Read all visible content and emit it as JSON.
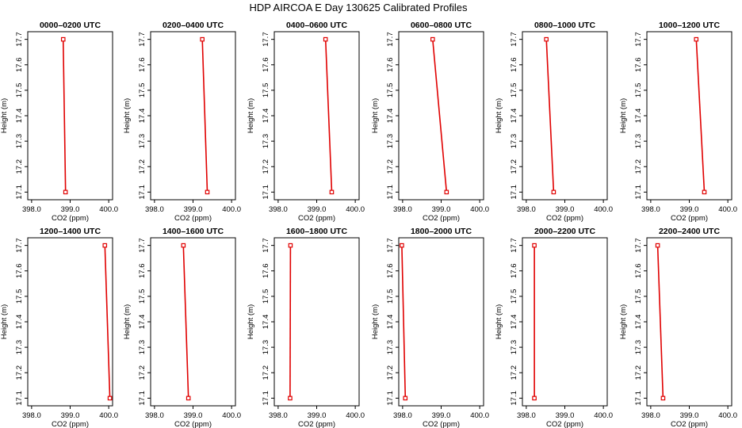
{
  "figure_title": "HDP AIRCOA E  Day 130625  Calibrated Profiles",
  "colors": {
    "line": "#e00000",
    "marker": "#e00000",
    "frame": "#000000"
  },
  "chart_data": [
    {
      "type": "line",
      "title": "0000–0200 UTC",
      "xlabel": "CO2 (ppm)",
      "ylabel": "Height (m)",
      "xlim": [
        397.9,
        400.1
      ],
      "ylim": [
        17.07,
        17.73
      ],
      "xticks": [
        "398.0",
        "399.0",
        "400.0"
      ],
      "yticks": [
        "17.1",
        "17.2",
        "17.3",
        "17.4",
        "17.5",
        "17.6",
        "17.7"
      ],
      "grid": false,
      "series": [
        {
          "x": [
            398.82,
            398.88
          ],
          "y": [
            17.7,
            17.1
          ]
        }
      ]
    },
    {
      "type": "line",
      "title": "0200–0400 UTC",
      "xlabel": "CO2 (ppm)",
      "ylabel": "Height (m)",
      "xlim": [
        397.9,
        400.1
      ],
      "ylim": [
        17.07,
        17.73
      ],
      "xticks": [
        "398.0",
        "399.0",
        "400.0"
      ],
      "yticks": [
        "17.1",
        "17.2",
        "17.3",
        "17.4",
        "17.5",
        "17.6",
        "17.7"
      ],
      "grid": false,
      "series": [
        {
          "x": [
            399.24,
            399.37
          ],
          "y": [
            17.7,
            17.1
          ]
        }
      ]
    },
    {
      "type": "line",
      "title": "0400–0600 UTC",
      "xlabel": "CO2 (ppm)",
      "ylabel": "Height (m)",
      "xlim": [
        397.9,
        400.1
      ],
      "ylim": [
        17.07,
        17.73
      ],
      "xticks": [
        "398.0",
        "399.0",
        "400.0"
      ],
      "yticks": [
        "17.1",
        "17.2",
        "17.3",
        "17.4",
        "17.5",
        "17.6",
        "17.7"
      ],
      "grid": false,
      "series": [
        {
          "x": [
            399.23,
            399.39
          ],
          "y": [
            17.7,
            17.1
          ]
        }
      ]
    },
    {
      "type": "line",
      "title": "0600–0800 UTC",
      "xlabel": "CO2 (ppm)",
      "ylabel": "Height (m)",
      "xlim": [
        397.9,
        400.1
      ],
      "ylim": [
        17.07,
        17.73
      ],
      "xticks": [
        "398.0",
        "399.0",
        "400.0"
      ],
      "yticks": [
        "17.1",
        "17.2",
        "17.3",
        "17.4",
        "17.5",
        "17.6",
        "17.7"
      ],
      "grid": false,
      "series": [
        {
          "x": [
            398.78,
            399.14
          ],
          "y": [
            17.7,
            17.1
          ]
        }
      ]
    },
    {
      "type": "line",
      "title": "0800–1000 UTC",
      "xlabel": "CO2 (ppm)",
      "ylabel": "Height (m)",
      "xlim": [
        397.9,
        400.1
      ],
      "ylim": [
        17.07,
        17.73
      ],
      "xticks": [
        "398.0",
        "399.0",
        "400.0"
      ],
      "yticks": [
        "17.1",
        "17.2",
        "17.3",
        "17.4",
        "17.5",
        "17.6",
        "17.7"
      ],
      "grid": false,
      "series": [
        {
          "x": [
            398.52,
            398.71
          ],
          "y": [
            17.7,
            17.1
          ]
        }
      ]
    },
    {
      "type": "line",
      "title": "1000–1200 UTC",
      "xlabel": "CO2 (ppm)",
      "ylabel": "Height (m)",
      "xlim": [
        397.9,
        400.1
      ],
      "ylim": [
        17.07,
        17.73
      ],
      "xticks": [
        "398.0",
        "399.0",
        "400.0"
      ],
      "yticks": [
        "17.1",
        "17.2",
        "17.3",
        "17.4",
        "17.5",
        "17.6",
        "17.7"
      ],
      "grid": false,
      "series": [
        {
          "x": [
            399.18,
            399.39
          ],
          "y": [
            17.7,
            17.1
          ]
        }
      ]
    },
    {
      "type": "line",
      "title": "1200–1400 UTC",
      "xlabel": "CO2 (ppm)",
      "ylabel": "Height (m)",
      "xlim": [
        397.9,
        400.1
      ],
      "ylim": [
        17.07,
        17.73
      ],
      "xticks": [
        "398.0",
        "399.0",
        "400.0"
      ],
      "yticks": [
        "17.1",
        "17.2",
        "17.3",
        "17.4",
        "17.5",
        "17.6",
        "17.7"
      ],
      "grid": false,
      "series": [
        {
          "x": [
            399.9,
            400.03
          ],
          "y": [
            17.7,
            17.1
          ]
        }
      ]
    },
    {
      "type": "line",
      "title": "1400–1600 UTC",
      "xlabel": "CO2 (ppm)",
      "ylabel": "Height (m)",
      "xlim": [
        397.9,
        400.1
      ],
      "ylim": [
        17.07,
        17.73
      ],
      "xticks": [
        "398.0",
        "399.0",
        "400.0"
      ],
      "yticks": [
        "17.1",
        "17.2",
        "17.3",
        "17.4",
        "17.5",
        "17.6",
        "17.7"
      ],
      "grid": false,
      "series": [
        {
          "x": [
            398.75,
            398.88
          ],
          "y": [
            17.7,
            17.1
          ]
        }
      ]
    },
    {
      "type": "line",
      "title": "1600–1800 UTC",
      "xlabel": "CO2 (ppm)",
      "ylabel": "Height (m)",
      "xlim": [
        397.9,
        400.1
      ],
      "ylim": [
        17.07,
        17.73
      ],
      "xticks": [
        "398.0",
        "399.0",
        "400.0"
      ],
      "yticks": [
        "17.1",
        "17.2",
        "17.3",
        "17.4",
        "17.5",
        "17.6",
        "17.7"
      ],
      "grid": false,
      "series": [
        {
          "x": [
            398.32,
            398.31
          ],
          "y": [
            17.7,
            17.1
          ]
        }
      ]
    },
    {
      "type": "line",
      "title": "1800–2000 UTC",
      "xlabel": "CO2 (ppm)",
      "ylabel": "Height (m)",
      "xlim": [
        397.9,
        400.1
      ],
      "ylim": [
        17.07,
        17.73
      ],
      "xticks": [
        "398.0",
        "399.0",
        "400.0"
      ],
      "yticks": [
        "17.1",
        "17.2",
        "17.3",
        "17.4",
        "17.5",
        "17.6",
        "17.7"
      ],
      "grid": false,
      "series": [
        {
          "x": [
            397.98,
            398.07
          ],
          "y": [
            17.7,
            17.1
          ]
        }
      ]
    },
    {
      "type": "line",
      "title": "2000–2200 UTC",
      "xlabel": "CO2 (ppm)",
      "ylabel": "Height (m)",
      "xlim": [
        397.9,
        400.1
      ],
      "ylim": [
        17.07,
        17.73
      ],
      "xticks": [
        "398.0",
        "399.0",
        "400.0"
      ],
      "yticks": [
        "17.1",
        "17.2",
        "17.3",
        "17.4",
        "17.5",
        "17.6",
        "17.7"
      ],
      "grid": false,
      "series": [
        {
          "x": [
            398.21,
            398.21
          ],
          "y": [
            17.7,
            17.1
          ]
        }
      ]
    },
    {
      "type": "line",
      "title": "2200–2400 UTC",
      "xlabel": "CO2 (ppm)",
      "ylabel": "Height (m)",
      "xlim": [
        397.9,
        400.1
      ],
      "ylim": [
        17.07,
        17.73
      ],
      "xticks": [
        "398.0",
        "399.0",
        "400.0"
      ],
      "yticks": [
        "17.1",
        "17.2",
        "17.3",
        "17.4",
        "17.5",
        "17.6",
        "17.7"
      ],
      "grid": false,
      "series": [
        {
          "x": [
            398.18,
            398.32
          ],
          "y": [
            17.7,
            17.1
          ]
        }
      ]
    }
  ]
}
